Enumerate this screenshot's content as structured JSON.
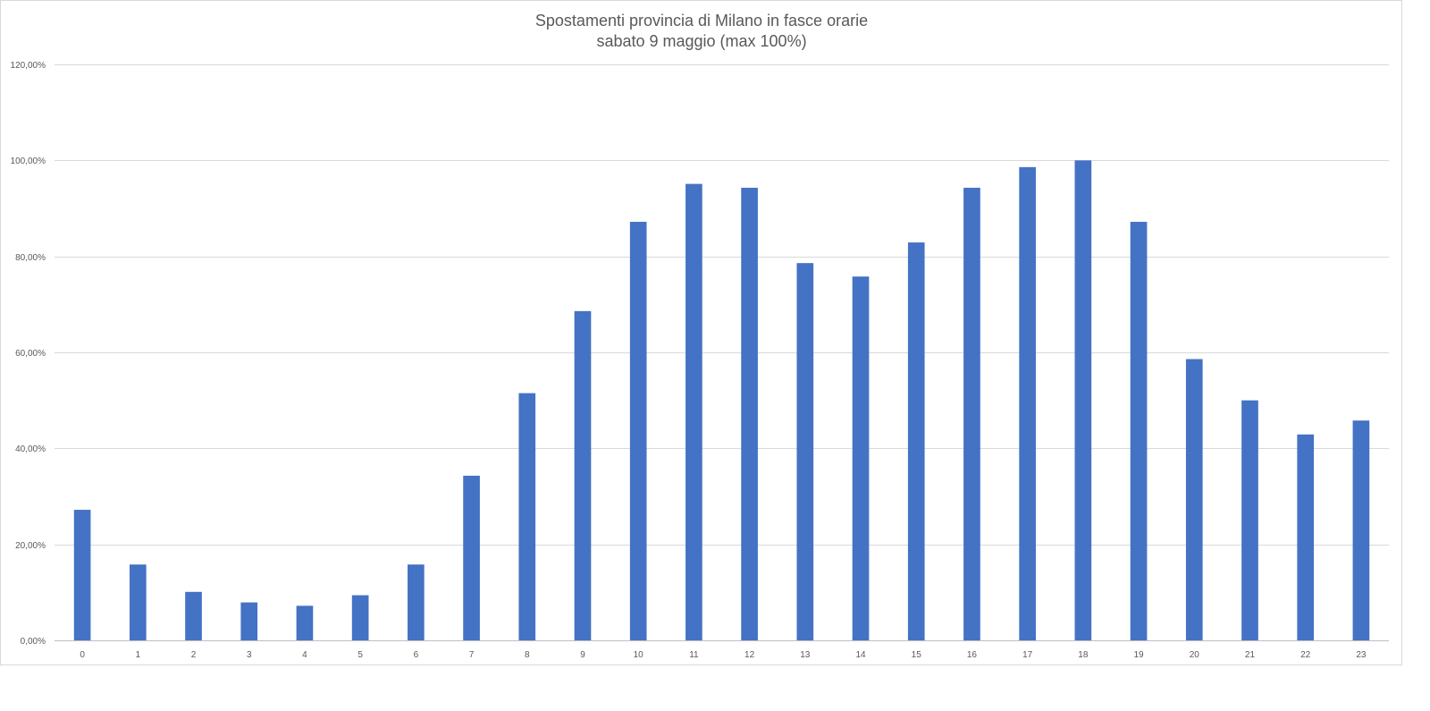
{
  "chart_data": {
    "type": "bar",
    "title": "Spostamenti provincia di Milano in  fasce orarie",
    "subtitle": "sabato 9 maggio (max 100%)",
    "xlabel": "",
    "ylabel": "",
    "categories": [
      "0",
      "1",
      "2",
      "3",
      "4",
      "5",
      "6",
      "7",
      "8",
      "9",
      "10",
      "11",
      "12",
      "13",
      "14",
      "15",
      "16",
      "17",
      "18",
      "19",
      "20",
      "21",
      "22",
      "23"
    ],
    "values": [
      27.2,
      15.8,
      10.1,
      7.9,
      7.2,
      9.4,
      15.8,
      34.3,
      51.5,
      68.6,
      87.2,
      95.1,
      94.3,
      78.6,
      75.8,
      82.9,
      94.3,
      98.6,
      100.0,
      87.2,
      58.6,
      50.0,
      42.9,
      45.8
    ],
    "ylim": [
      0,
      120
    ],
    "yticks": [
      {
        "value": 0,
        "label": "0,00%"
      },
      {
        "value": 20,
        "label": "20,00%"
      },
      {
        "value": 40,
        "label": "40,00%"
      },
      {
        "value": 60,
        "label": "60,00%"
      },
      {
        "value": 80,
        "label": "80,00%"
      },
      {
        "value": 100,
        "label": "100,00%"
      },
      {
        "value": 120,
        "label": "120,00%"
      }
    ],
    "grid": true,
    "legend": "none",
    "colors": {
      "bar": "#4472C4",
      "grid": "#d9d9d9",
      "text": "#595959",
      "axis": "#bfbfbf"
    }
  }
}
